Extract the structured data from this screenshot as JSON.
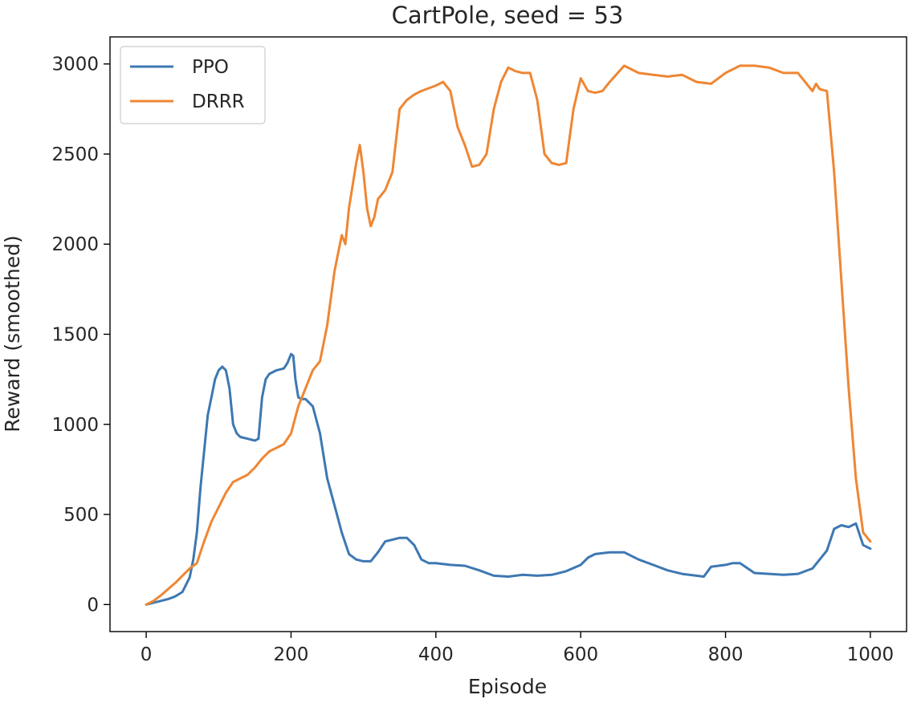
{
  "chart_data": {
    "type": "line",
    "title": "CartPole, seed = 53",
    "xlabel": "Episode",
    "ylabel": "Reward (smoothed)",
    "xlim": [
      -50,
      1050
    ],
    "ylim": [
      -150,
      3150
    ],
    "xticks": [
      0,
      200,
      400,
      600,
      800,
      1000
    ],
    "yticks": [
      0,
      500,
      1000,
      1500,
      2000,
      2500,
      3000
    ],
    "legend_position": "top-left",
    "grid": false,
    "series": [
      {
        "name": "PPO",
        "color": "#3d78b2",
        "x": [
          0,
          10,
          20,
          30,
          40,
          50,
          60,
          65,
          70,
          75,
          80,
          85,
          90,
          95,
          100,
          105,
          110,
          115,
          120,
          125,
          130,
          140,
          150,
          155,
          160,
          165,
          170,
          180,
          190,
          195,
          200,
          203,
          206,
          210,
          215,
          220,
          230,
          240,
          250,
          260,
          270,
          280,
          290,
          300,
          310,
          320,
          330,
          340,
          350,
          360,
          370,
          380,
          390,
          400,
          420,
          440,
          460,
          480,
          500,
          520,
          540,
          560,
          580,
          600,
          610,
          620,
          640,
          660,
          680,
          700,
          720,
          740,
          760,
          770,
          780,
          800,
          810,
          820,
          840,
          860,
          880,
          900,
          920,
          930,
          940,
          950,
          960,
          970,
          975,
          980,
          990,
          1000
        ],
        "y": [
          0,
          10,
          20,
          30,
          45,
          70,
          150,
          250,
          400,
          650,
          850,
          1050,
          1150,
          1250,
          1300,
          1320,
          1300,
          1200,
          1000,
          950,
          930,
          920,
          910,
          920,
          1150,
          1250,
          1280,
          1300,
          1310,
          1340,
          1390,
          1380,
          1250,
          1150,
          1140,
          1140,
          1100,
          950,
          700,
          550,
          400,
          280,
          250,
          240,
          240,
          290,
          350,
          360,
          370,
          370,
          330,
          250,
          230,
          230,
          220,
          215,
          190,
          160,
          155,
          165,
          160,
          165,
          185,
          220,
          260,
          280,
          290,
          290,
          250,
          220,
          190,
          170,
          160,
          155,
          210,
          220,
          230,
          230,
          175,
          170,
          165,
          170,
          200,
          250,
          300,
          420,
          440,
          430,
          440,
          450,
          330,
          310
        ]
      },
      {
        "name": "DRRR",
        "color": "#ef8633",
        "x": [
          0,
          10,
          20,
          30,
          40,
          50,
          60,
          70,
          80,
          90,
          100,
          110,
          120,
          130,
          140,
          150,
          160,
          170,
          180,
          190,
          200,
          210,
          220,
          230,
          240,
          250,
          260,
          270,
          275,
          280,
          290,
          295,
          300,
          305,
          310,
          315,
          320,
          330,
          340,
          350,
          360,
          370,
          380,
          400,
          410,
          420,
          430,
          440,
          450,
          460,
          470,
          480,
          490,
          500,
          510,
          520,
          530,
          540,
          550,
          560,
          570,
          580,
          590,
          600,
          610,
          620,
          630,
          640,
          660,
          680,
          700,
          720,
          740,
          760,
          780,
          800,
          820,
          840,
          860,
          880,
          900,
          920,
          925,
          930,
          940,
          950,
          960,
          970,
          980,
          990,
          1000
        ],
        "y": [
          0,
          20,
          50,
          85,
          120,
          160,
          200,
          230,
          350,
          460,
          540,
          620,
          680,
          700,
          720,
          760,
          810,
          850,
          870,
          890,
          950,
          1100,
          1200,
          1300,
          1350,
          1550,
          1850,
          2050,
          2000,
          2200,
          2450,
          2550,
          2400,
          2200,
          2100,
          2150,
          2250,
          2300,
          2400,
          2750,
          2800,
          2830,
          2850,
          2880,
          2900,
          2850,
          2650,
          2550,
          2430,
          2440,
          2500,
          2750,
          2900,
          2980,
          2960,
          2950,
          2950,
          2800,
          2500,
          2450,
          2440,
          2450,
          2750,
          2920,
          2850,
          2840,
          2850,
          2900,
          2990,
          2950,
          2940,
          2930,
          2940,
          2900,
          2890,
          2950,
          2990,
          2990,
          2980,
          2950,
          2950,
          2850,
          2890,
          2860,
          2850,
          2400,
          1800,
          1200,
          700,
          400,
          350
        ]
      }
    ]
  }
}
